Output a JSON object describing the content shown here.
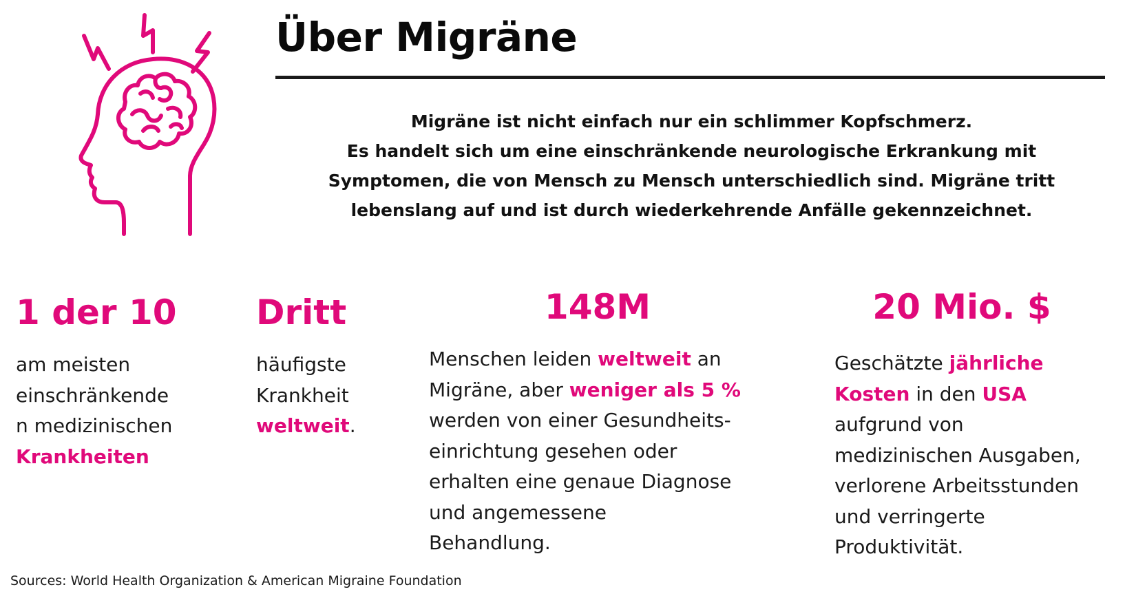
{
  "header": {
    "title": "Über Migräne",
    "intro_lines": [
      "Migräne ist nicht einfach nur ein schlimmer Kopfschmerz.",
      "Es handelt sich um eine einschränkende neurologische Erkrankung mit",
      "Symptomen, die von Mensch zu Mensch unterschiedlich sind. Migräne tritt",
      "lebenslang auf und ist durch wiederkehrende Anfälle gekennzeichnet."
    ]
  },
  "icon": {
    "name": "head-brain-icon",
    "color": "#e0097a"
  },
  "colors": {
    "accent": "#e0097a",
    "text": "#111111",
    "rule": "#1a1a1a"
  },
  "stats": [
    {
      "value": "1 der 10",
      "lines": [
        [
          {
            "text": "am meisten",
            "hl": false
          }
        ],
        [
          {
            "text": "einschränkende",
            "hl": false
          }
        ],
        [
          {
            "text": "n medizinischen",
            "hl": false
          }
        ],
        [
          {
            "text": "Krankheiten",
            "hl": true
          }
        ]
      ]
    },
    {
      "value": "Dritt",
      "lines": [
        [
          {
            "text": "häufigste",
            "hl": false
          }
        ],
        [
          {
            "text": "Krankheit",
            "hl": false
          }
        ],
        [
          {
            "text": "weltweit",
            "hl": true
          },
          {
            "text": ".",
            "hl": false
          }
        ]
      ]
    },
    {
      "value": "148M",
      "lines": [
        [
          {
            "text": "Menschen leiden ",
            "hl": false
          },
          {
            "text": "weltweit",
            "hl": true
          },
          {
            "text": " an",
            "hl": false
          }
        ],
        [
          {
            "text": "Migräne, aber ",
            "hl": false
          },
          {
            "text": "weniger als 5 %",
            "hl": true
          }
        ],
        [
          {
            "text": "werden von einer Gesundheits-",
            "hl": false
          }
        ],
        [
          {
            "text": "einrichtung gesehen oder",
            "hl": false
          }
        ],
        [
          {
            "text": "erhalten eine genaue Diagnose",
            "hl": false
          }
        ],
        [
          {
            "text": "und angemessene",
            "hl": false
          }
        ],
        [
          {
            "text": "Behandlung.",
            "hl": false
          }
        ]
      ]
    },
    {
      "value": "20 Mio. $",
      "lines": [
        [
          {
            "text": "Geschätzte ",
            "hl": false
          },
          {
            "text": "jährliche",
            "hl": true
          }
        ],
        [
          {
            "text": "Kosten",
            "hl": true
          },
          {
            "text": " in den ",
            "hl": false
          },
          {
            "text": "USA",
            "hl": true
          }
        ],
        [
          {
            "text": "aufgrund von",
            "hl": false
          }
        ],
        [
          {
            "text": "medizinischen Ausgaben,",
            "hl": false
          }
        ],
        [
          {
            "text": "verlorene Arbeitsstunden",
            "hl": false
          }
        ],
        [
          {
            "text": "und verringerte",
            "hl": false
          }
        ],
        [
          {
            "text": "Produktivität.",
            "hl": false
          }
        ]
      ]
    }
  ],
  "footer": {
    "sources": "Sources: World Health Organization & American Migraine Foundation"
  }
}
